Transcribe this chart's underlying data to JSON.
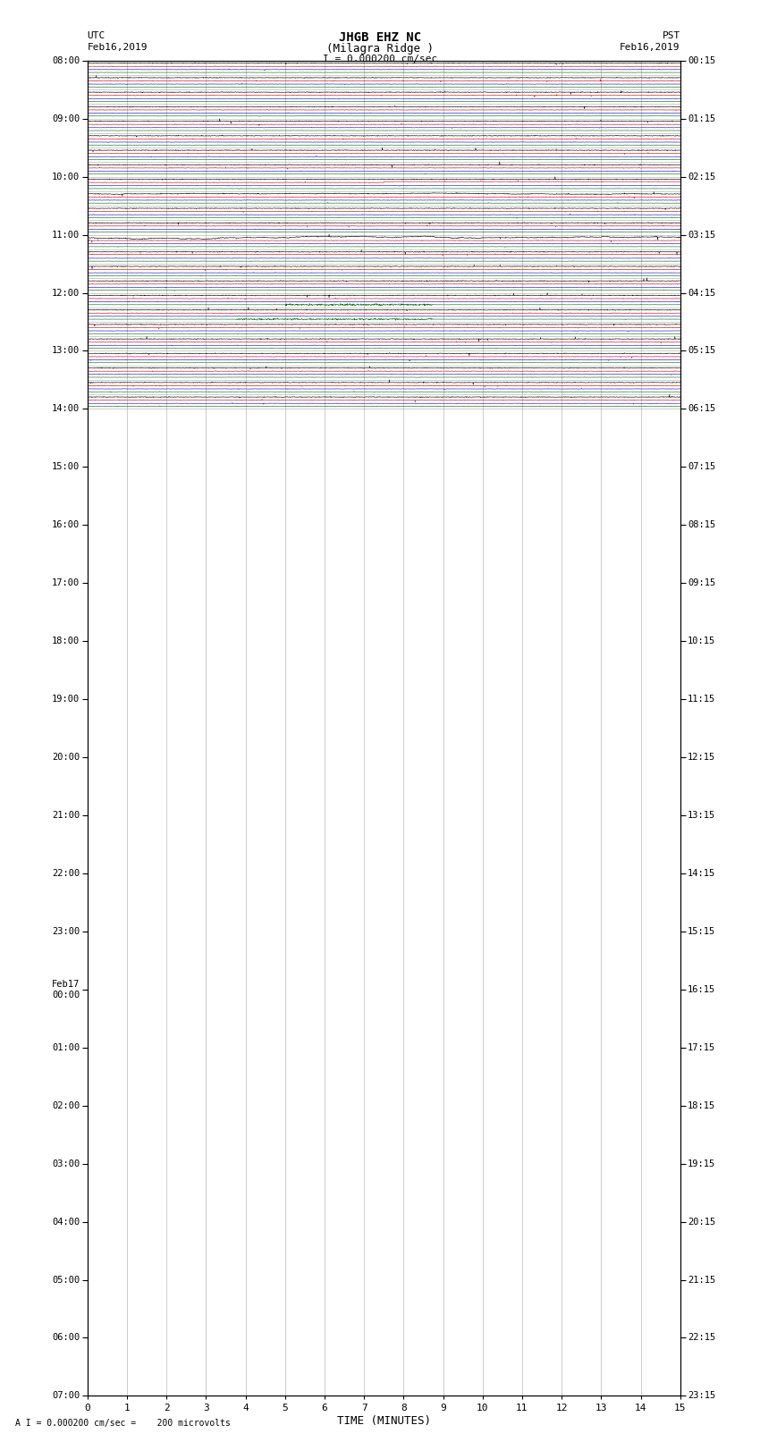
{
  "title_line1": "JHGB EHZ NC",
  "title_line2": "(Milagra Ridge )",
  "scale_label": "I = 0.000200 cm/sec",
  "footer_label": "A I = 0.000200 cm/sec =    200 microvolts",
  "xlabel": "TIME (MINUTES)",
  "bg_color": "#ffffff",
  "plot_bg": "#ffffff",
  "grid_color": "#999999",
  "trace_colors": [
    "#000000",
    "#cc0000",
    "#0000cc",
    "#006600"
  ],
  "x_min": 0,
  "x_max": 15,
  "x_ticks": [
    0,
    1,
    2,
    3,
    4,
    5,
    6,
    7,
    8,
    9,
    10,
    11,
    12,
    13,
    14,
    15
  ],
  "utc_times": [
    "08:00",
    "",
    "",
    "",
    "09:00",
    "",
    "",
    "",
    "10:00",
    "",
    "",
    "",
    "11:00",
    "",
    "",
    "",
    "12:00",
    "",
    "",
    "",
    "13:00",
    "",
    "",
    "",
    "14:00",
    "",
    "",
    "",
    "15:00",
    "",
    "",
    "",
    "16:00",
    "",
    "",
    "",
    "17:00",
    "",
    "",
    "",
    "18:00",
    "",
    "",
    "",
    "19:00",
    "",
    "",
    "",
    "20:00",
    "",
    "",
    "",
    "21:00",
    "",
    "",
    "",
    "22:00",
    "",
    "",
    "",
    "23:00",
    "",
    "",
    "",
    "Feb17\n00:00",
    "",
    "",
    "",
    "01:00",
    "",
    "",
    "",
    "02:00",
    "",
    "",
    "",
    "03:00",
    "",
    "",
    "",
    "04:00",
    "",
    "",
    "",
    "05:00",
    "",
    "",
    "",
    "06:00",
    "",
    "",
    "",
    "07:00"
  ],
  "pst_times": [
    "00:15",
    "",
    "",
    "",
    "01:15",
    "",
    "",
    "",
    "02:15",
    "",
    "",
    "",
    "03:15",
    "",
    "",
    "",
    "04:15",
    "",
    "",
    "",
    "05:15",
    "",
    "",
    "",
    "06:15",
    "",
    "",
    "",
    "07:15",
    "",
    "",
    "",
    "08:15",
    "",
    "",
    "",
    "09:15",
    "",
    "",
    "",
    "10:15",
    "",
    "",
    "",
    "11:15",
    "",
    "",
    "",
    "12:15",
    "",
    "",
    "",
    "13:15",
    "",
    "",
    "",
    "14:15",
    "",
    "",
    "",
    "15:15",
    "",
    "",
    "",
    "16:15",
    "",
    "",
    "",
    "17:15",
    "",
    "",
    "",
    "18:15",
    "",
    "",
    "",
    "19:15",
    "",
    "",
    "",
    "20:15",
    "",
    "",
    "",
    "21:15",
    "",
    "",
    "",
    "22:15",
    "",
    "",
    "",
    "23:15"
  ],
  "n_rows": 24,
  "n_traces": 4,
  "noise_scale": [
    0.012,
    0.008,
    0.006,
    0.005
  ],
  "spike_prob": 0.003,
  "spike_amp_mult": [
    8,
    6,
    5,
    4
  ]
}
